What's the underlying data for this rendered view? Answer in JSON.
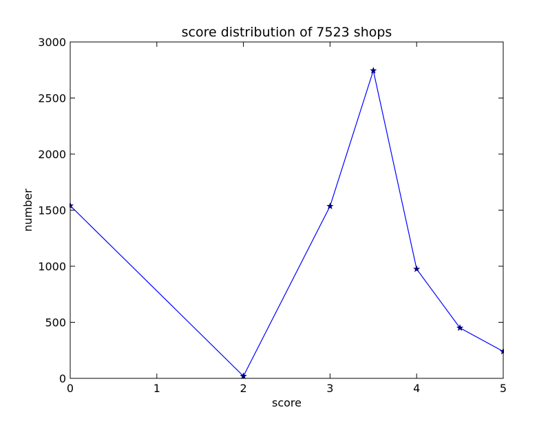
{
  "chart_data": {
    "type": "line",
    "title": "score distribution of 7523 shops",
    "xlabel": "score",
    "ylabel": "number",
    "xlim": [
      0,
      5
    ],
    "ylim": [
      0,
      3000
    ],
    "xticks": [
      "0",
      "1",
      "2",
      "3",
      "4",
      "5"
    ],
    "yticks": [
      "0",
      "500",
      "1000",
      "1500",
      "2000",
      "2500",
      "3000"
    ],
    "grid": false,
    "marker": "star",
    "line_color": "#0000ff",
    "marker_color": "#000080",
    "series": [
      {
        "x": [
          0,
          2,
          3,
          3.5,
          4,
          4.5,
          5
        ],
        "y": [
          1540,
          20,
          1535,
          2745,
          975,
          450,
          240
        ]
      }
    ]
  }
}
